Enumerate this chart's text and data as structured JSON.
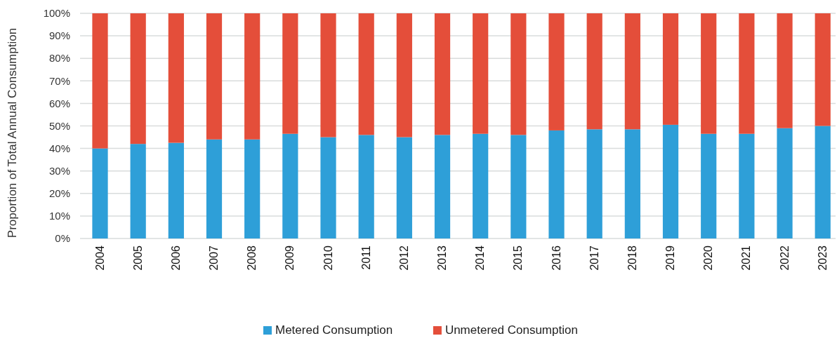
{
  "chart_data": {
    "type": "bar",
    "stacked": true,
    "ylabel": "Proportion of Total Annual Consumption",
    "categories": [
      "2004",
      "2005",
      "2006",
      "2007",
      "2008",
      "2009",
      "2010",
      "2011",
      "2012",
      "2013",
      "2014",
      "2015",
      "2016",
      "2017",
      "2018",
      "2019",
      "2020",
      "2021",
      "2022",
      "2023"
    ],
    "series": [
      {
        "name": "Metered Consumption",
        "color": "#2e9fd8",
        "values": [
          40,
          42,
          42.5,
          44,
          44,
          46.5,
          45,
          46,
          45,
          46,
          46.5,
          46,
          48,
          48.5,
          48.5,
          50.5,
          46.5,
          46.5,
          49,
          50
        ]
      },
      {
        "name": "Unmetered Consumption",
        "color": "#e44e3a",
        "values": [
          60,
          58,
          57.5,
          56,
          56,
          53.5,
          55,
          54,
          55,
          54,
          53.5,
          54,
          52,
          51.5,
          51.5,
          49.5,
          53.5,
          53.5,
          51,
          50
        ]
      }
    ],
    "ylim": [
      0,
      100
    ],
    "yticks": [
      {
        "value": 0,
        "label": "0%"
      },
      {
        "value": 10,
        "label": "10%"
      },
      {
        "value": 20,
        "label": "20%"
      },
      {
        "value": 30,
        "label": "30%"
      },
      {
        "value": 40,
        "label": "40%"
      },
      {
        "value": 50,
        "label": "50%"
      },
      {
        "value": 60,
        "label": "60%"
      },
      {
        "value": 70,
        "label": "70%"
      },
      {
        "value": 80,
        "label": "80%"
      },
      {
        "value": 90,
        "label": "90%"
      },
      {
        "value": 100,
        "label": "100%"
      }
    ],
    "grid": "y",
    "legend": "bottom"
  }
}
